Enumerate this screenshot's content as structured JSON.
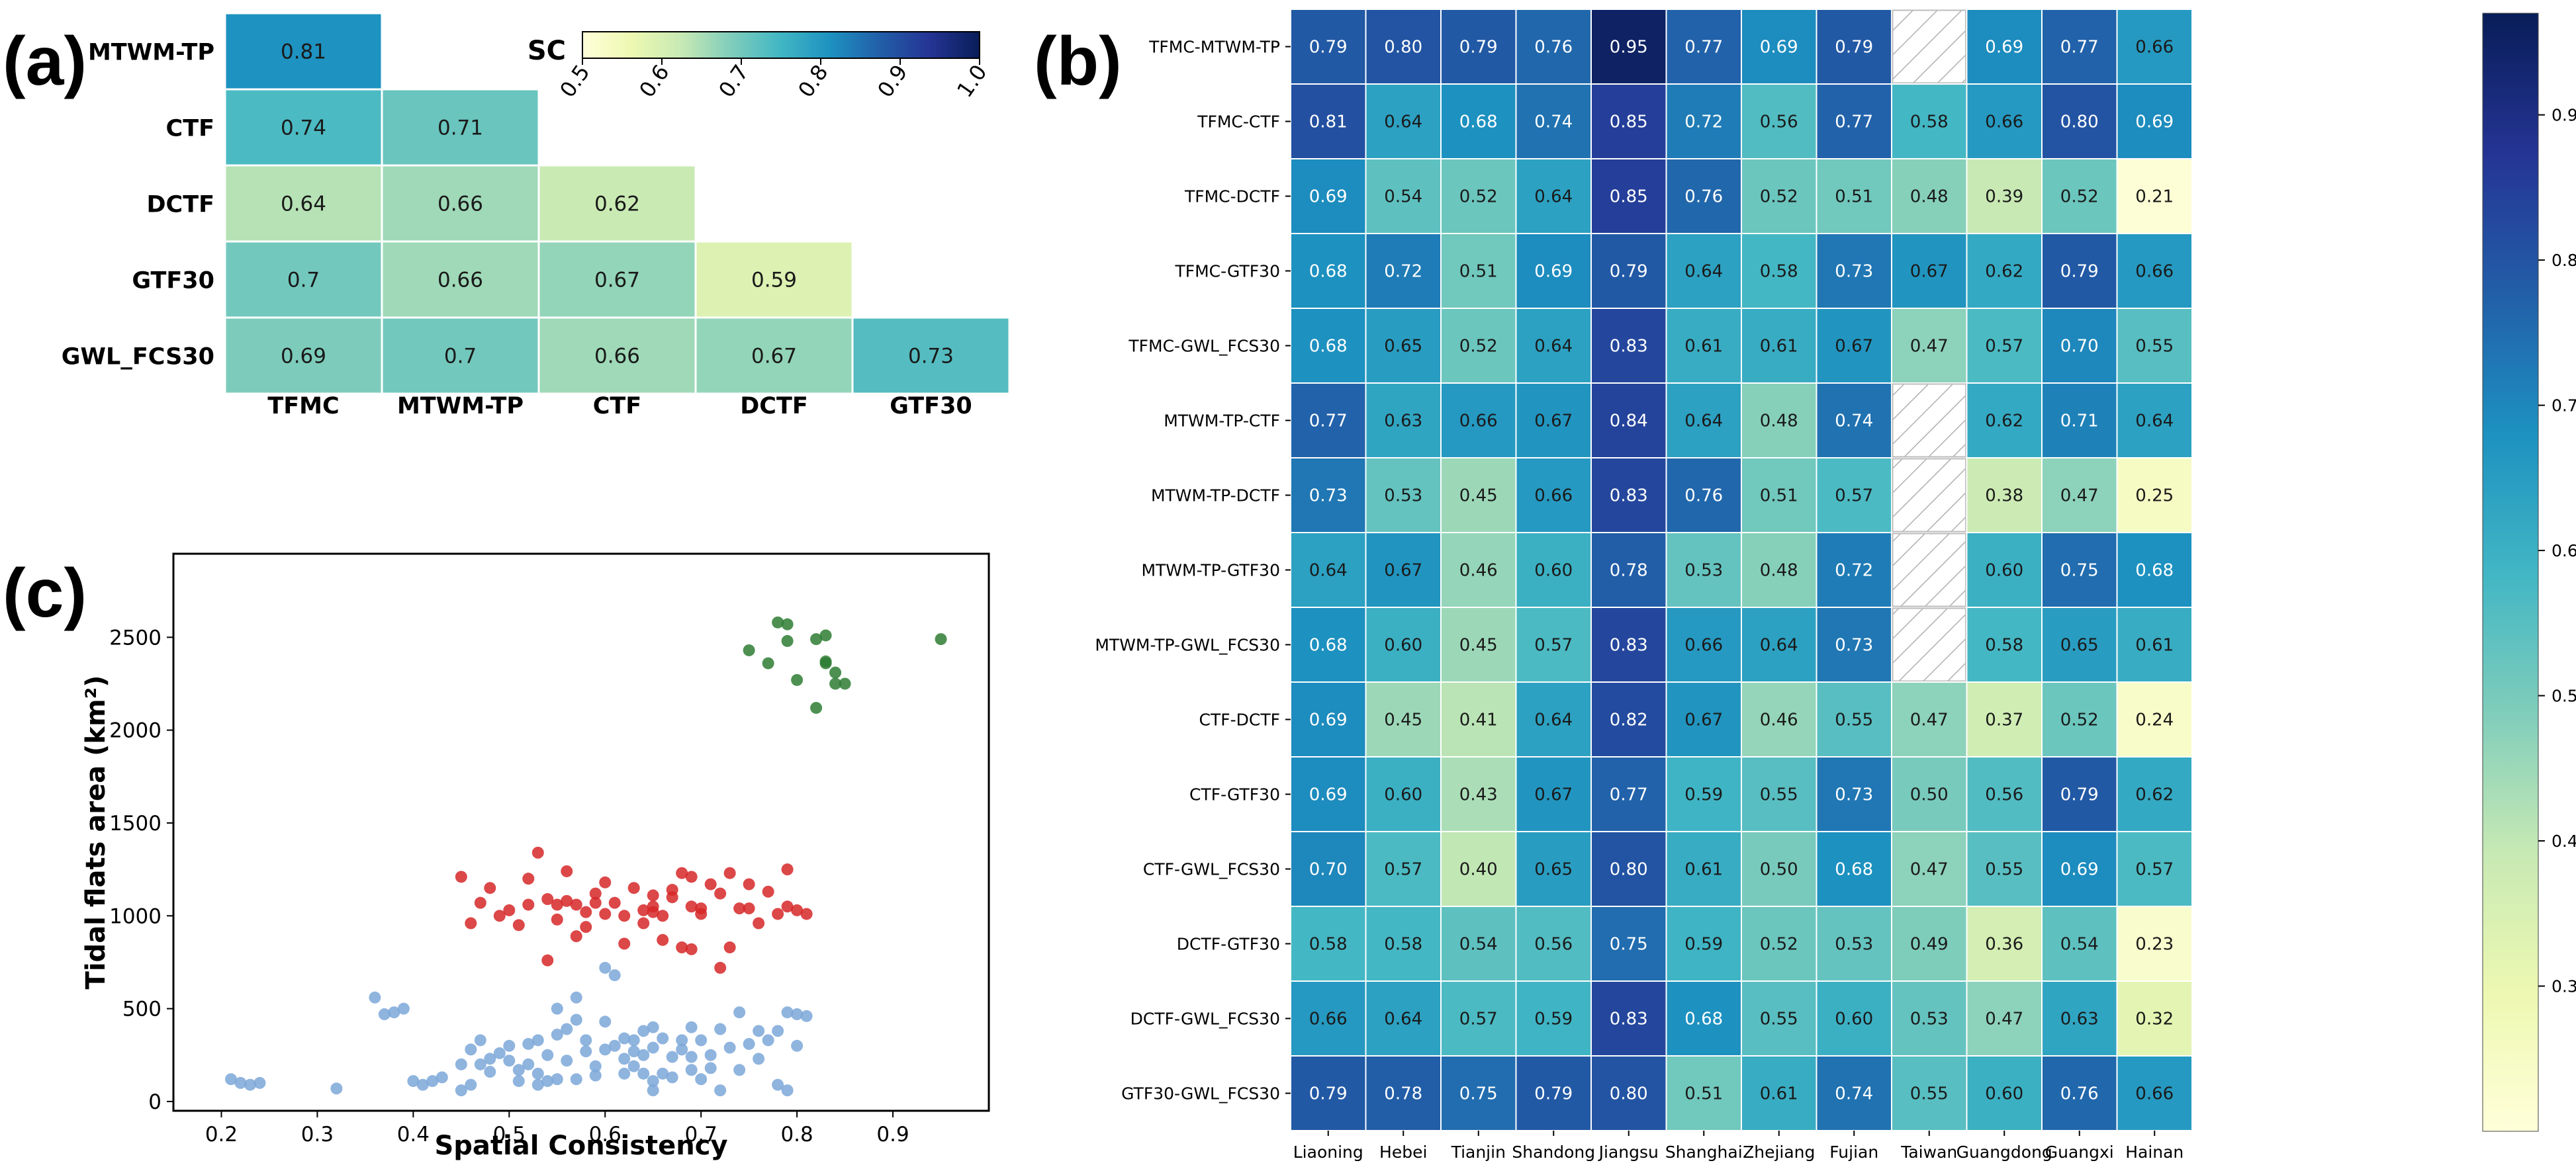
{
  "panels": {
    "a": "(a)",
    "b": "(b)",
    "c": "(c)"
  },
  "chart_data": [
    {
      "id": "a",
      "type": "heatmap",
      "title": "",
      "colorbar_label": "SC",
      "colorbar_ticks": [
        "0.5",
        "0.6",
        "0.7",
        "0.8",
        "0.9",
        "1.0"
      ],
      "colorbar_range": [
        0.5,
        1.0
      ],
      "row_labels": [
        "MTWM-TP",
        "CTF",
        "DCTF",
        "GTF30",
        "GWL_FCS30"
      ],
      "col_labels": [
        "TFMC",
        "MTWM-TP",
        "CTF",
        "DCTF",
        "GTF30"
      ],
      "values": [
        [
          "0.81"
        ],
        [
          "0.74",
          "0.71"
        ],
        [
          "0.64",
          "0.66",
          "0.62"
        ],
        [
          "0.7",
          "0.66",
          "0.67",
          "0.59"
        ],
        [
          "0.69",
          "0.7",
          "0.66",
          "0.67",
          "0.73"
        ]
      ]
    },
    {
      "id": "b",
      "type": "heatmap",
      "title": "",
      "colorbar_ticks": [
        "0.3",
        "0.4",
        "0.5",
        "0.6",
        "0.7",
        "0.8",
        "0.9"
      ],
      "colorbar_range": [
        0.2,
        0.97
      ],
      "row_labels": [
        "TFMC-MTWM-TP",
        "TFMC-CTF",
        "TFMC-DCTF",
        "TFMC-GTF30",
        "TFMC-GWL_FCS30",
        "MTWM-TP-CTF",
        "MTWM-TP-DCTF",
        "MTWM-TP-GTF30",
        "MTWM-TP-GWL_FCS30",
        "CTF-DCTF",
        "CTF-GTF30",
        "CTF-GWL_FCS30",
        "DCTF-GTF30",
        "DCTF-GWL_FCS30",
        "GTF30-GWL_FCS30"
      ],
      "col_labels": [
        "Liaoning",
        "Hebei",
        "Tianjin",
        "Shandong",
        "Jiangsu",
        "Shanghai",
        "Zhejiang",
        "Fujian",
        "Taiwan",
        "Guangdong",
        "Guangxi",
        "Hainan"
      ],
      "values": [
        [
          "0.79",
          "0.80",
          "0.79",
          "0.76",
          "0.95",
          "0.77",
          "0.69",
          "0.79",
          null,
          "0.69",
          "0.77",
          "0.66"
        ],
        [
          "0.81",
          "0.64",
          "0.68",
          "0.74",
          "0.85",
          "0.72",
          "0.56",
          "0.77",
          "0.58",
          "0.66",
          "0.80",
          "0.69"
        ],
        [
          "0.69",
          "0.54",
          "0.52",
          "0.64",
          "0.85",
          "0.76",
          "0.52",
          "0.51",
          "0.48",
          "0.39",
          "0.52",
          "0.21"
        ],
        [
          "0.68",
          "0.72",
          "0.51",
          "0.69",
          "0.79",
          "0.64",
          "0.58",
          "0.73",
          "0.67",
          "0.62",
          "0.79",
          "0.66"
        ],
        [
          "0.68",
          "0.65",
          "0.52",
          "0.64",
          "0.83",
          "0.61",
          "0.61",
          "0.67",
          "0.47",
          "0.57",
          "0.70",
          "0.55"
        ],
        [
          "0.77",
          "0.63",
          "0.66",
          "0.67",
          "0.84",
          "0.64",
          "0.48",
          "0.74",
          null,
          "0.62",
          "0.71",
          "0.64"
        ],
        [
          "0.73",
          "0.53",
          "0.45",
          "0.66",
          "0.83",
          "0.76",
          "0.51",
          "0.57",
          null,
          "0.38",
          "0.47",
          "0.25"
        ],
        [
          "0.64",
          "0.67",
          "0.46",
          "0.60",
          "0.78",
          "0.53",
          "0.48",
          "0.72",
          null,
          "0.60",
          "0.75",
          "0.68"
        ],
        [
          "0.68",
          "0.60",
          "0.45",
          "0.57",
          "0.83",
          "0.66",
          "0.64",
          "0.73",
          null,
          "0.58",
          "0.65",
          "0.61"
        ],
        [
          "0.69",
          "0.45",
          "0.41",
          "0.64",
          "0.82",
          "0.67",
          "0.46",
          "0.55",
          "0.47",
          "0.37",
          "0.52",
          "0.24"
        ],
        [
          "0.69",
          "0.60",
          "0.43",
          "0.67",
          "0.77",
          "0.59",
          "0.55",
          "0.73",
          "0.50",
          "0.56",
          "0.79",
          "0.62"
        ],
        [
          "0.70",
          "0.57",
          "0.40",
          "0.65",
          "0.80",
          "0.61",
          "0.50",
          "0.68",
          "0.47",
          "0.55",
          "0.69",
          "0.57"
        ],
        [
          "0.58",
          "0.58",
          "0.54",
          "0.56",
          "0.75",
          "0.59",
          "0.52",
          "0.53",
          "0.49",
          "0.36",
          "0.54",
          "0.23"
        ],
        [
          "0.66",
          "0.64",
          "0.57",
          "0.59",
          "0.83",
          "0.68",
          "0.55",
          "0.60",
          "0.53",
          "0.47",
          "0.63",
          "0.32"
        ],
        [
          "0.79",
          "0.78",
          "0.75",
          "0.79",
          "0.80",
          "0.51",
          "0.61",
          "0.74",
          "0.55",
          "0.60",
          "0.76",
          "0.66"
        ]
      ]
    },
    {
      "id": "c",
      "type": "scatter",
      "title": "",
      "xlabel": "Spatial Consistency",
      "ylabel": "Tidal flats area (km²)",
      "xlim": [
        0.15,
        1.0
      ],
      "ylim": [
        -50,
        2950
      ],
      "xticks": [
        "0.2",
        "0.3",
        "0.4",
        "0.5",
        "0.6",
        "0.7",
        "0.8",
        "0.9"
      ],
      "yticks": [
        "0",
        "500",
        "1000",
        "1500",
        "2000",
        "2500"
      ],
      "series": [
        {
          "name": "green",
          "color": "#2e7d32",
          "points": [
            [
              0.75,
              2430
            ],
            [
              0.77,
              2360
            ],
            [
              0.78,
              2580
            ],
            [
              0.79,
              2570
            ],
            [
              0.79,
              2480
            ],
            [
              0.8,
              2270
            ],
            [
              0.82,
              2120
            ],
            [
              0.82,
              2490
            ],
            [
              0.83,
              2510
            ],
            [
              0.83,
              2360
            ],
            [
              0.84,
              2310
            ],
            [
              0.84,
              2250
            ],
            [
              0.85,
              2250
            ],
            [
              0.83,
              2370
            ],
            [
              0.95,
              2490
            ]
          ]
        },
        {
          "name": "red",
          "color": "#d62728",
          "points": [
            [
              0.45,
              1210
            ],
            [
              0.46,
              960
            ],
            [
              0.47,
              1070
            ],
            [
              0.48,
              1150
            ],
            [
              0.49,
              1000
            ],
            [
              0.5,
              1030
            ],
            [
              0.51,
              950
            ],
            [
              0.52,
              1200
            ],
            [
              0.52,
              1060
            ],
            [
              0.53,
              1340
            ],
            [
              0.54,
              1090
            ],
            [
              0.54,
              760
            ],
            [
              0.55,
              980
            ],
            [
              0.55,
              1060
            ],
            [
              0.56,
              1080
            ],
            [
              0.56,
              1240
            ],
            [
              0.57,
              1060
            ],
            [
              0.57,
              890
            ],
            [
              0.58,
              940
            ],
            [
              0.58,
              1020
            ],
            [
              0.59,
              1070
            ],
            [
              0.59,
              1120
            ],
            [
              0.6,
              1180
            ],
            [
              0.6,
              1010
            ],
            [
              0.61,
              1070
            ],
            [
              0.62,
              1000
            ],
            [
              0.62,
              850
            ],
            [
              0.63,
              1150
            ],
            [
              0.64,
              1030
            ],
            [
              0.64,
              960
            ],
            [
              0.65,
              1050
            ],
            [
              0.65,
              1110
            ],
            [
              0.65,
              1020
            ],
            [
              0.66,
              870
            ],
            [
              0.66,
              1000
            ],
            [
              0.67,
              1140
            ],
            [
              0.67,
              1100
            ],
            [
              0.68,
              1230
            ],
            [
              0.68,
              830
            ],
            [
              0.69,
              820
            ],
            [
              0.69,
              1210
            ],
            [
              0.69,
              1050
            ],
            [
              0.7,
              1040
            ],
            [
              0.7,
              1010
            ],
            [
              0.71,
              1170
            ],
            [
              0.72,
              1120
            ],
            [
              0.72,
              720
            ],
            [
              0.73,
              1230
            ],
            [
              0.73,
              830
            ],
            [
              0.74,
              1040
            ],
            [
              0.75,
              1170
            ],
            [
              0.75,
              1040
            ],
            [
              0.76,
              960
            ],
            [
              0.77,
              1130
            ],
            [
              0.78,
              1010
            ],
            [
              0.79,
              1250
            ],
            [
              0.79,
              1050
            ],
            [
              0.8,
              1030
            ],
            [
              0.81,
              1010
            ]
          ]
        },
        {
          "name": "blue",
          "color": "#7ba7d8",
          "points": [
            [
              0.21,
              120
            ],
            [
              0.22,
              100
            ],
            [
              0.23,
              90
            ],
            [
              0.24,
              100
            ],
            [
              0.32,
              70
            ],
            [
              0.36,
              560
            ],
            [
              0.37,
              470
            ],
            [
              0.38,
              480
            ],
            [
              0.39,
              500
            ],
            [
              0.4,
              110
            ],
            [
              0.41,
              90
            ],
            [
              0.42,
              110
            ],
            [
              0.43,
              130
            ],
            [
              0.45,
              60
            ],
            [
              0.45,
              200
            ],
            [
              0.46,
              90
            ],
            [
              0.46,
              280
            ],
            [
              0.47,
              330
            ],
            [
              0.47,
              200
            ],
            [
              0.48,
              230
            ],
            [
              0.48,
              160
            ],
            [
              0.49,
              260
            ],
            [
              0.5,
              220
            ],
            [
              0.5,
              300
            ],
            [
              0.51,
              110
            ],
            [
              0.51,
              170
            ],
            [
              0.52,
              310
            ],
            [
              0.52,
              200
            ],
            [
              0.53,
              330
            ],
            [
              0.53,
              150
            ],
            [
              0.53,
              90
            ],
            [
              0.54,
              250
            ],
            [
              0.54,
              110
            ],
            [
              0.55,
              120
            ],
            [
              0.55,
              500
            ],
            [
              0.55,
              360
            ],
            [
              0.56,
              390
            ],
            [
              0.56,
              220
            ],
            [
              0.57,
              440
            ],
            [
              0.57,
              120
            ],
            [
              0.57,
              560
            ],
            [
              0.58,
              270
            ],
            [
              0.58,
              330
            ],
            [
              0.59,
              140
            ],
            [
              0.59,
              190
            ],
            [
              0.6,
              430
            ],
            [
              0.6,
              720
            ],
            [
              0.6,
              280
            ],
            [
              0.61,
              300
            ],
            [
              0.61,
              680
            ],
            [
              0.62,
              230
            ],
            [
              0.62,
              150
            ],
            [
              0.62,
              340
            ],
            [
              0.63,
              270
            ],
            [
              0.63,
              330
            ],
            [
              0.63,
              190
            ],
            [
              0.64,
              150
            ],
            [
              0.64,
              250
            ],
            [
              0.64,
              380
            ],
            [
              0.65,
              400
            ],
            [
              0.65,
              290
            ],
            [
              0.65,
              110
            ],
            [
              0.65,
              60
            ],
            [
              0.66,
              340
            ],
            [
              0.66,
              150
            ],
            [
              0.67,
              240
            ],
            [
              0.67,
              130
            ],
            [
              0.68,
              280
            ],
            [
              0.68,
              330
            ],
            [
              0.69,
              170
            ],
            [
              0.69,
              240
            ],
            [
              0.69,
              400
            ],
            [
              0.7,
              330
            ],
            [
              0.7,
              120
            ],
            [
              0.71,
              250
            ],
            [
              0.71,
              180
            ],
            [
              0.72,
              60
            ],
            [
              0.72,
              390
            ],
            [
              0.73,
              290
            ],
            [
              0.74,
              170
            ],
            [
              0.74,
              480
            ],
            [
              0.75,
              310
            ],
            [
              0.76,
              230
            ],
            [
              0.76,
              380
            ],
            [
              0.77,
              330
            ],
            [
              0.78,
              380
            ],
            [
              0.78,
              90
            ],
            [
              0.79,
              480
            ],
            [
              0.79,
              60
            ],
            [
              0.8,
              470
            ],
            [
              0.8,
              300
            ],
            [
              0.81,
              460
            ]
          ]
        }
      ]
    }
  ]
}
